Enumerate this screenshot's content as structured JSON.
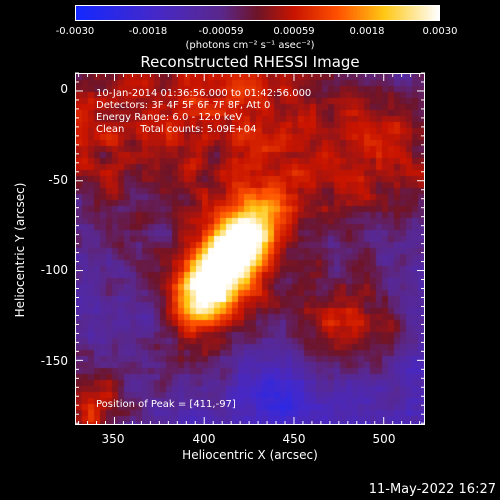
{
  "colorbar": {
    "ticks": [
      "-0.0030",
      "-0.0018",
      "-0.00059",
      "0.00059",
      "0.0018",
      "0.0030"
    ],
    "tick_values": [
      -0.003,
      -0.0018,
      -0.00059,
      0.00059,
      0.0018,
      0.003
    ],
    "range": [
      -0.003,
      0.003
    ],
    "colormap": "rhessi-rainbow",
    "label": "(photons cm⁻² s⁻¹ asec⁻²)"
  },
  "chart_data": {
    "type": "heatmap",
    "title": "Reconstructed RHESSI Image",
    "xlabel": "Heliocentric X (arcsec)",
    "ylabel": "Heliocentric Y (arcsec)",
    "xlim": [
      328,
      523
    ],
    "ylim": [
      -186,
      10
    ],
    "xticks": [
      350,
      400,
      450,
      500
    ],
    "yticks": [
      0,
      -50,
      -100,
      -150
    ],
    "peak": [
      411,
      -97
    ],
    "value_range": [
      -0.003,
      0.003
    ]
  },
  "annotations": {
    "time": "10-Jan-2014 01:36:56.000 to 01:42:56.000",
    "detectors": "Detectors: 3F 4F 5F 6F 7F 8F, Att 0",
    "energy": "Energy Range: 6.0 - 12.0 keV",
    "clean": "Clean     Total counts: 5.09E+04",
    "peak": "Position of Peak = [411,-97]"
  },
  "footer": {
    "date": "11-May-2022 16:27"
  }
}
